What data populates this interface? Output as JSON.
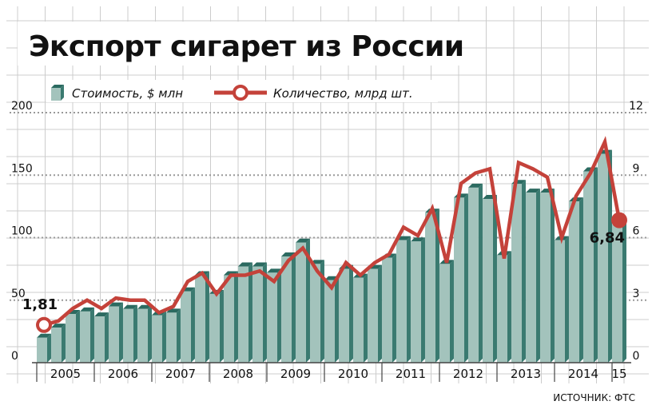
{
  "title": "Экспорт сигарет из России",
  "source": "ИСТОЧНИК: ФТС",
  "colors": {
    "bar_front": "#a3c3bc",
    "bar_side": "#3a7a70",
    "bar_top": "#2b6a60",
    "line": "#c4423a",
    "grid": "#999999",
    "background_grid": "#cccccc"
  },
  "legend": {
    "bars_label": "Стоимость, $ млн",
    "line_label": "Количество, млрд шт."
  },
  "chart_data": {
    "type": "bar+line",
    "title": "Экспорт сигарет из России",
    "x_labels": [
      "2005",
      "2006",
      "2007",
      "2008",
      "2009",
      "2010",
      "2011",
      "2012",
      "2013",
      "2014",
      "15"
    ],
    "left_axis": {
      "ticks": [
        "0",
        "50",
        "100",
        "150",
        "200"
      ],
      "ylim": [
        0,
        200
      ]
    },
    "right_axis": {
      "ticks": [
        "0",
        "3",
        "6",
        "9",
        "12"
      ],
      "ylim": [
        0,
        12
      ]
    },
    "series": [
      {
        "name": "Стоимость, $ млн",
        "kind": "bar",
        "axis": "left",
        "values": [
          20,
          28,
          39,
          41,
          37,
          45,
          43,
          43,
          38,
          40,
          57,
          70,
          55,
          70,
          77,
          77,
          72,
          85,
          96,
          79,
          66,
          75,
          68,
          75,
          84,
          98,
          97,
          120,
          79,
          132,
          140,
          131,
          86,
          143,
          136,
          136,
          98,
          129,
          153,
          167,
          110
        ]
      },
      {
        "name": "Количество, млрд шт.",
        "kind": "line",
        "axis": "right",
        "values": [
          1.81,
          2.0,
          2.6,
          3.0,
          2.6,
          3.1,
          3.0,
          3.0,
          2.4,
          2.7,
          3.9,
          4.3,
          3.3,
          4.2,
          4.2,
          4.4,
          3.9,
          4.9,
          5.5,
          4.4,
          3.6,
          4.8,
          4.2,
          4.8,
          5.2,
          6.5,
          6.1,
          7.4,
          4.8,
          8.6,
          9.1,
          9.3,
          5.0,
          9.6,
          9.3,
          8.9,
          6.0,
          8.0,
          9.1,
          10.6,
          6.84
        ]
      }
    ],
    "annotations": [
      {
        "label": "1,81",
        "series": "Количество, млрд шт.",
        "index": 0
      },
      {
        "label": "6,84",
        "series": "Количество, млрд шт.",
        "index": 40
      }
    ],
    "grid": true
  }
}
